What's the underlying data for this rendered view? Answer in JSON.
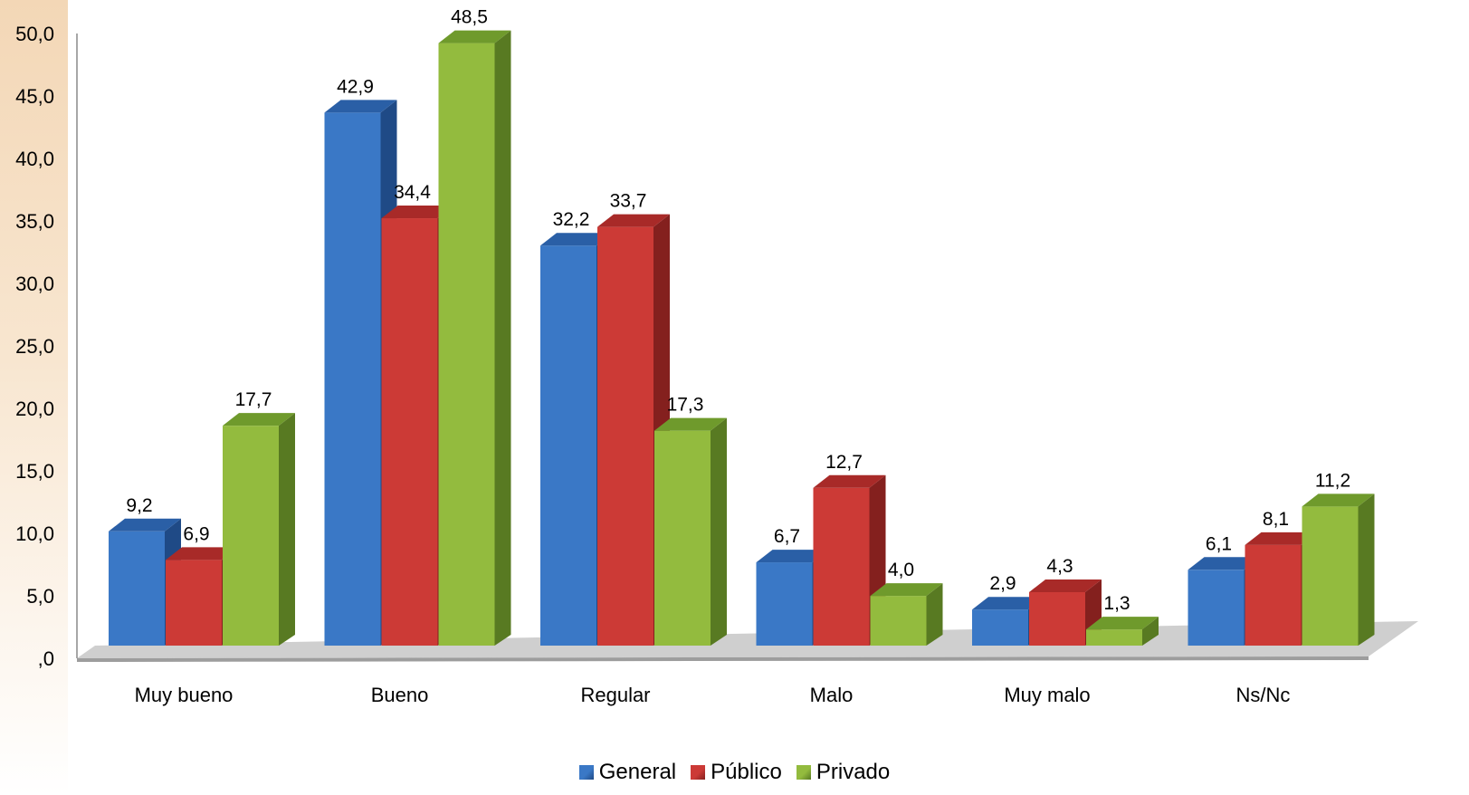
{
  "chart_data": {
    "type": "bar",
    "title": "",
    "xlabel": "",
    "ylabel": "",
    "ylim": [
      0,
      50
    ],
    "yticks": [
      ",0",
      "5,0",
      "10,0",
      "15,0",
      "20,0",
      "25,0",
      "30,0",
      "35,0",
      "40,0",
      "45,0",
      "50,0"
    ],
    "categories": [
      "Muy bueno",
      "Bueno",
      "Regular",
      "Malo",
      "Muy malo",
      "Ns/Nc"
    ],
    "series": [
      {
        "name": "General",
        "values": [
          9.2,
          42.9,
          32.2,
          6.7,
          2.9,
          6.1
        ],
        "labels": [
          "9,2",
          "42,9",
          "32,2",
          "6,7",
          "2,9",
          "6,1"
        ],
        "colors": {
          "front": "#3a78c6",
          "top": "#2a5fa6",
          "side": "#1f4a86"
        }
      },
      {
        "name": "Público",
        "values": [
          6.9,
          34.4,
          33.7,
          12.7,
          4.3,
          8.1
        ],
        "labels": [
          "6,9",
          "34,4",
          "33,7",
          "12,7",
          "4,3",
          "8,1"
        ],
        "colors": {
          "front": "#cc3a36",
          "top": "#a82a28",
          "side": "#84201e"
        }
      },
      {
        "name": "Privado",
        "values": [
          17.7,
          48.5,
          17.3,
          4.0,
          1.3,
          11.2
        ],
        "labels": [
          "17,7",
          "48,5",
          "17,3",
          "4,0",
          "1,3",
          "11,2"
        ],
        "colors": {
          "front": "#93bb3e",
          "top": "#6f9a2c",
          "side": "#587a22"
        }
      }
    ],
    "legend_position": "bottom",
    "grid": false
  }
}
